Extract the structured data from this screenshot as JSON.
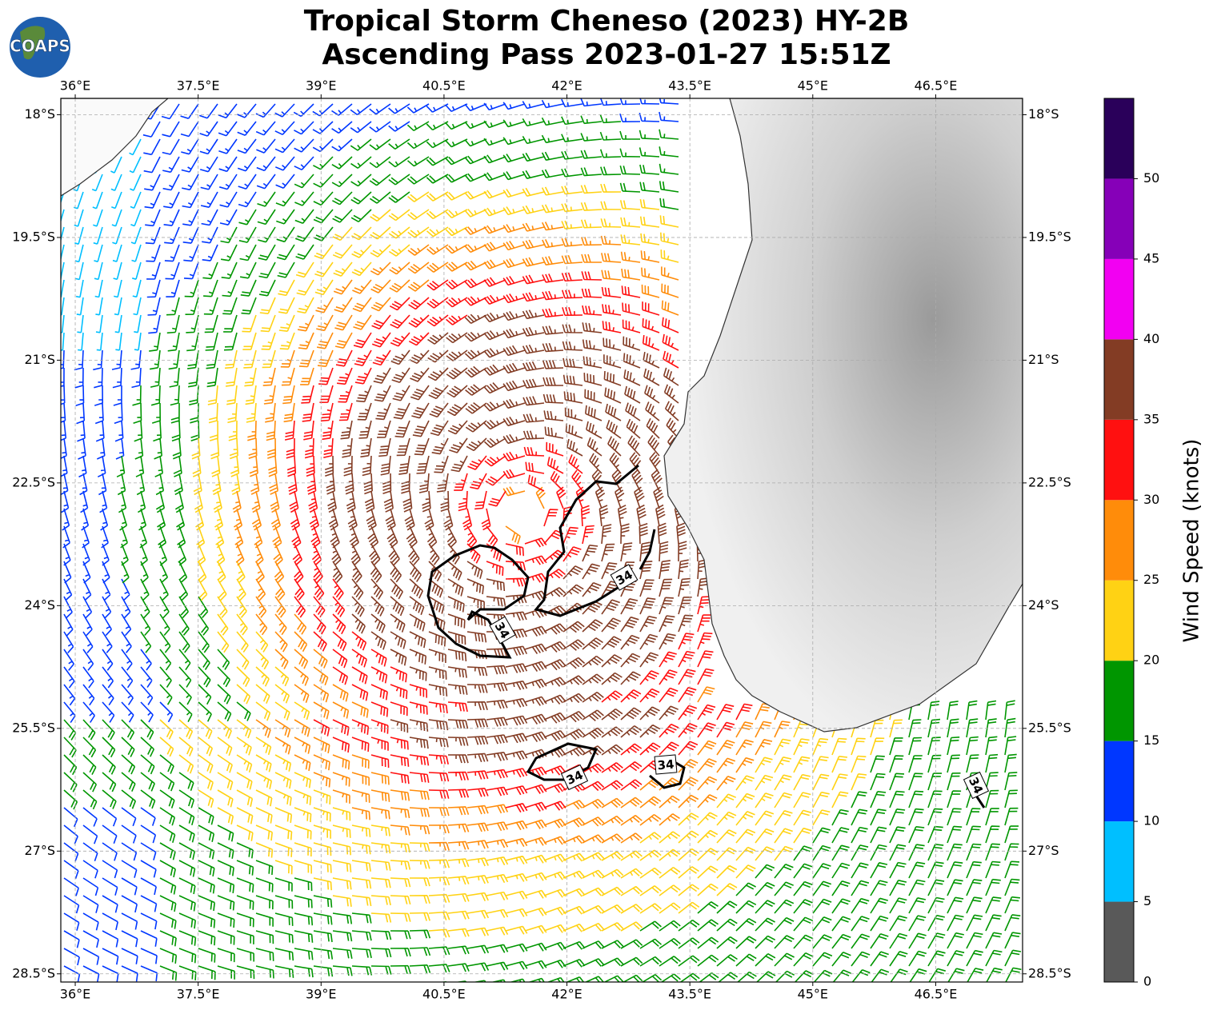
{
  "header": {
    "title_lines": [
      "Tropical Storm Cheneso (2023) HY-2B",
      "Ascending Pass 2023-01-27 15:51Z"
    ],
    "logo": "COAPS"
  },
  "map": {
    "lon_range": [
      35.824,
      47.56
    ],
    "lat_range": [
      -17.8,
      -28.6
    ],
    "lon_ticks": [
      {
        "value": 36,
        "label": "36°E"
      },
      {
        "value": 37.5,
        "label": "37.5°E"
      },
      {
        "value": 39,
        "label": "39°E"
      },
      {
        "value": 40.5,
        "label": "40.5°E"
      },
      {
        "value": 42,
        "label": "42°E"
      },
      {
        "value": 43.5,
        "label": "43.5°E"
      },
      {
        "value": 45,
        "label": "45°E"
      },
      {
        "value": 46.5,
        "label": "46.5°E"
      }
    ],
    "lat_ticks": [
      {
        "value": -18,
        "label": "18°S"
      },
      {
        "value": -19.5,
        "label": "19.5°S"
      },
      {
        "value": -21,
        "label": "21°S"
      },
      {
        "value": -22.5,
        "label": "22.5°S"
      },
      {
        "value": -24,
        "label": "24°S"
      },
      {
        "value": -25.5,
        "label": "25.5°S"
      },
      {
        "value": -27,
        "label": "27°S"
      },
      {
        "value": -28.5,
        "label": "28.5°S"
      }
    ],
    "grid": true,
    "contour_labels": [
      "34",
      "34",
      "34",
      "34",
      "34"
    ]
  },
  "colorbar": {
    "label": "Wind Speed (knots)",
    "range": [
      0,
      55
    ],
    "ticks": [
      0,
      5,
      10,
      15,
      20,
      25,
      30,
      35,
      40,
      45,
      50
    ],
    "colors": [
      "#595959",
      "#00bfff",
      "#0037ff",
      "#009600",
      "#ffd214",
      "#ff8c0a",
      "#ff1010",
      "#833c24",
      "#f200f2",
      "#8600b8",
      "#2a005a"
    ]
  }
}
